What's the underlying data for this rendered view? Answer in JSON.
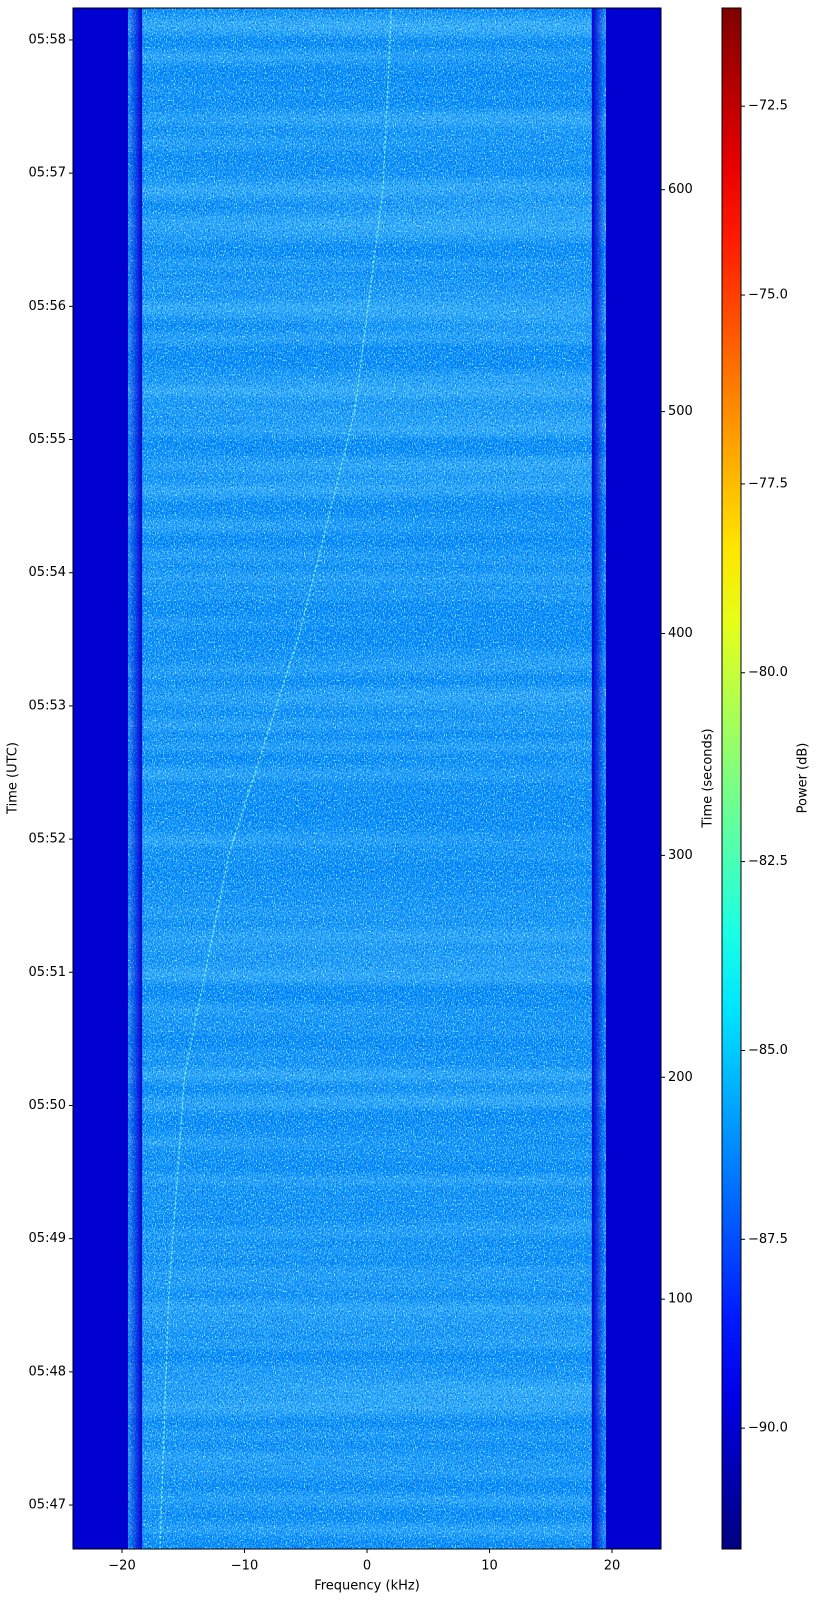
{
  "chart_data": {
    "type": "spectrogram",
    "xlabel": "Frequency (kHz)",
    "ylabel": "Time (UTC)",
    "y2label": "Time (seconds)",
    "colorbar_label": "Power (dB)",
    "colormap": "jet",
    "xlim": [
      -24,
      24
    ],
    "xticks": [
      {
        "value": -20,
        "label": "−20"
      },
      {
        "value": -10,
        "label": "−10"
      },
      0,
      10,
      20
    ],
    "ylim": [
      46.67,
      58.24
    ],
    "yticks": [
      {
        "value": 47,
        "label": "05:47"
      },
      {
        "value": 48,
        "label": "05:48"
      },
      {
        "value": 49,
        "label": "05:49"
      },
      {
        "value": 50,
        "label": "05:50"
      },
      {
        "value": 51,
        "label": "05:51"
      },
      {
        "value": 52,
        "label": "05:52"
      },
      {
        "value": 53,
        "label": "05:53"
      },
      {
        "value": 54,
        "label": "05:54"
      },
      {
        "value": 55,
        "label": "05:55"
      },
      {
        "value": 56,
        "label": "05:56"
      },
      {
        "value": 57,
        "label": "05:57"
      },
      {
        "value": 58,
        "label": "05:58"
      }
    ],
    "y2lim": [
      -12.6,
      681.9
    ],
    "y2ticks": [
      100,
      200,
      300,
      400,
      500,
      600
    ],
    "clim": [
      -91.6,
      -71.2
    ],
    "cticks": [
      {
        "value": -90,
        "label": "−90.0"
      },
      {
        "value": -87.5,
        "label": "−87.5"
      },
      {
        "value": -85,
        "label": "−85.0"
      },
      {
        "value": -82.5,
        "label": "−82.5"
      },
      {
        "value": -80,
        "label": "−80.0"
      },
      {
        "value": -77.5,
        "label": "−77.5"
      },
      {
        "value": -75,
        "label": "−75.0"
      },
      {
        "value": -72.5,
        "label": "−72.5"
      }
    ],
    "occupied_band": [
      -19.5,
      19.5
    ],
    "trace_freq": [
      -16.9,
      -16.2,
      -14.9,
      -11.3,
      -5.5,
      -1.0,
      1.3,
      2.0
    ],
    "trace_time": [
      -12.6,
      100,
      200,
      300,
      400,
      500,
      600,
      681.9
    ]
  }
}
